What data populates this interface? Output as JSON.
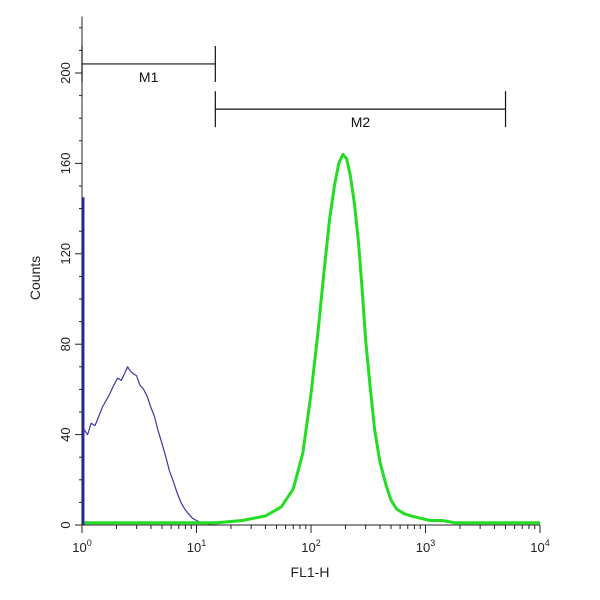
{
  "chart_data": {
    "type": "line",
    "xlabel": "FL1-H",
    "ylabel": "Counts",
    "x_scale": "log",
    "xlim": [
      1,
      10000
    ],
    "ylim": [
      0,
      225
    ],
    "x_ticks": [
      {
        "value": 1,
        "base": "10",
        "exp": "0"
      },
      {
        "value": 10,
        "base": "10",
        "exp": "1"
      },
      {
        "value": 100,
        "base": "10",
        "exp": "2"
      },
      {
        "value": 1000,
        "base": "10",
        "exp": "3"
      },
      {
        "value": 10000,
        "base": "10",
        "exp": "4"
      }
    ],
    "y_ticks": [
      {
        "value": 0,
        "label": "0"
      },
      {
        "value": 40,
        "label": "40"
      },
      {
        "value": 80,
        "label": "80"
      },
      {
        "value": 120,
        "label": "120"
      },
      {
        "value": 160,
        "label": "160"
      },
      {
        "value": 200,
        "label": "200"
      }
    ],
    "markers": [
      {
        "label": "M1",
        "x_start": 1,
        "x_end": 14.6,
        "y": 204
      },
      {
        "label": "M2",
        "x_start": 14.6,
        "x_end": 5000,
        "y": 184
      }
    ],
    "series": [
      {
        "color": "#3a3aa8",
        "x": [
          1.0,
          1.05,
          1.12,
          1.2,
          1.3,
          1.4,
          1.5,
          1.62,
          1.75,
          1.9,
          2.05,
          2.2,
          2.35,
          2.5,
          2.65,
          2.8,
          3.0,
          3.2,
          3.45,
          3.7,
          4.0,
          4.3,
          4.6,
          5.0,
          5.4,
          5.8,
          6.3,
          6.8,
          7.3,
          7.9,
          8.5,
          9.2,
          10.0,
          11.0,
          12.0,
          13.5,
          15.0
        ],
        "values": [
          38,
          42,
          40,
          45,
          44,
          48,
          52,
          55,
          58,
          62,
          65,
          64,
          67,
          70,
          68,
          67,
          66,
          62,
          60,
          57,
          52,
          48,
          42,
          36,
          30,
          24,
          19,
          14,
          10,
          7,
          5,
          3,
          2,
          1,
          1,
          0,
          0
        ]
      },
      {
        "color": "#22dd22",
        "x": [
          1.0,
          2.0,
          4.0,
          8.0,
          15.0,
          25.0,
          40.0,
          55.0,
          70.0,
          85.0,
          100.0,
          115.0,
          130.0,
          145.0,
          160.0,
          175.0,
          190.0,
          205.0,
          220.0,
          240.0,
          260.0,
          280.0,
          300.0,
          330.0,
          360.0,
          400.0,
          450.0,
          500.0,
          560.0,
          650.0,
          750.0,
          900.0,
          1100.0,
          1400.0,
          1800.0,
          2500.0,
          4000.0,
          6000.0,
          10000.0
        ],
        "values": [
          1,
          1,
          1,
          1,
          1,
          2,
          4,
          8,
          16,
          32,
          58,
          85,
          112,
          135,
          150,
          160,
          164,
          162,
          155,
          142,
          125,
          104,
          82,
          60,
          42,
          28,
          18,
          11,
          7,
          5,
          4,
          3,
          2,
          2,
          1,
          1,
          1,
          1,
          1
        ]
      }
    ]
  }
}
